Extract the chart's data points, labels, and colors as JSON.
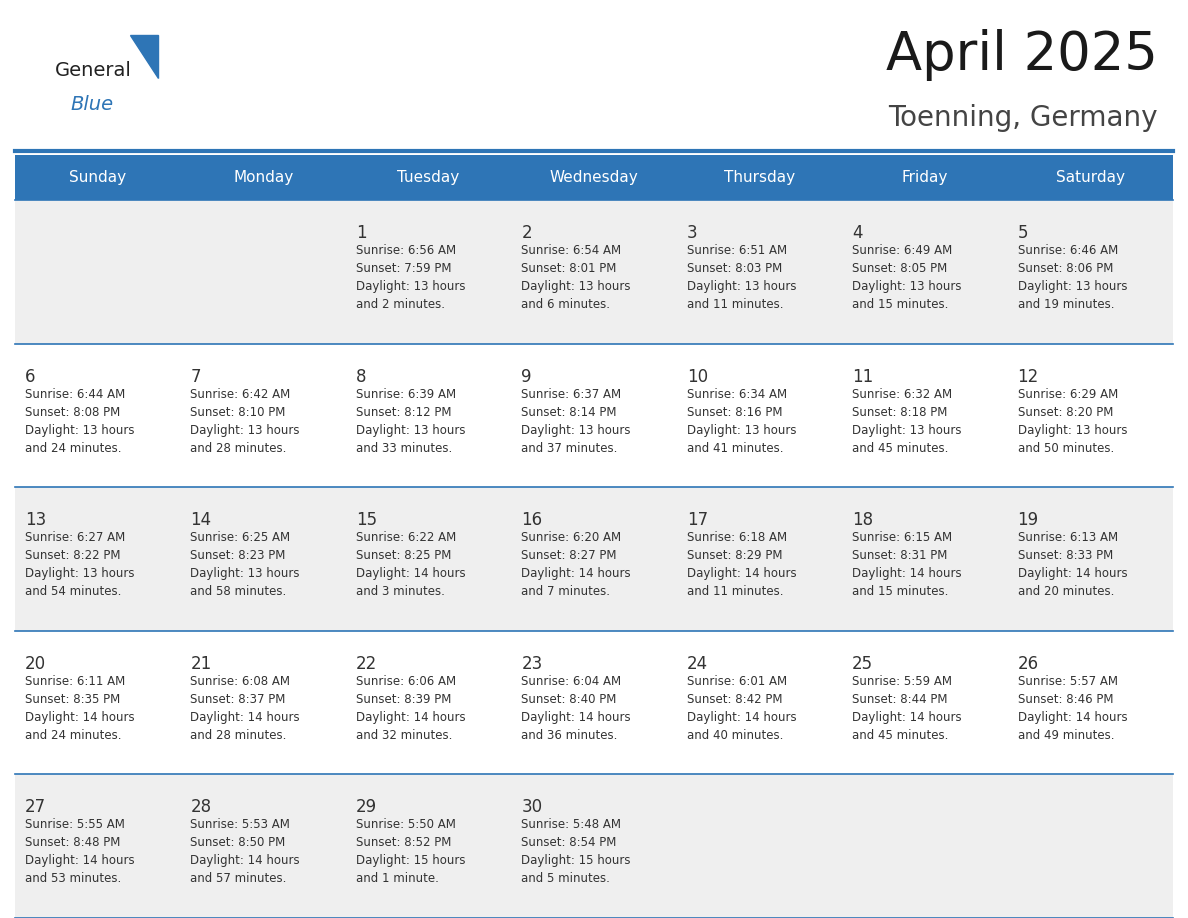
{
  "title": "April 2025",
  "subtitle": "Toenning, Germany",
  "header_bg_color": "#2E75B6",
  "header_text_color": "#FFFFFF",
  "cell_bg_light": "#EFEFEF",
  "cell_bg_white": "#FFFFFF",
  "cell_text_color": "#333333",
  "day_number_color": "#333333",
  "grid_color": "#2E75B6",
  "days_of_week": [
    "Sunday",
    "Monday",
    "Tuesday",
    "Wednesday",
    "Thursday",
    "Friday",
    "Saturday"
  ],
  "title_color": "#1a1a1a",
  "subtitle_color": "#444444",
  "logo_general_color": "#222222",
  "logo_blue_color": "#2E75B6",
  "weeks": [
    [
      {
        "date": "",
        "sunrise": "",
        "sunset": "",
        "daylight": ""
      },
      {
        "date": "",
        "sunrise": "",
        "sunset": "",
        "daylight": ""
      },
      {
        "date": "1",
        "sunrise": "6:56 AM",
        "sunset": "7:59 PM",
        "daylight": "13 hours\nand 2 minutes."
      },
      {
        "date": "2",
        "sunrise": "6:54 AM",
        "sunset": "8:01 PM",
        "daylight": "13 hours\nand 6 minutes."
      },
      {
        "date": "3",
        "sunrise": "6:51 AM",
        "sunset": "8:03 PM",
        "daylight": "13 hours\nand 11 minutes."
      },
      {
        "date": "4",
        "sunrise": "6:49 AM",
        "sunset": "8:05 PM",
        "daylight": "13 hours\nand 15 minutes."
      },
      {
        "date": "5",
        "sunrise": "6:46 AM",
        "sunset": "8:06 PM",
        "daylight": "13 hours\nand 19 minutes."
      }
    ],
    [
      {
        "date": "6",
        "sunrise": "6:44 AM",
        "sunset": "8:08 PM",
        "daylight": "13 hours\nand 24 minutes."
      },
      {
        "date": "7",
        "sunrise": "6:42 AM",
        "sunset": "8:10 PM",
        "daylight": "13 hours\nand 28 minutes."
      },
      {
        "date": "8",
        "sunrise": "6:39 AM",
        "sunset": "8:12 PM",
        "daylight": "13 hours\nand 33 minutes."
      },
      {
        "date": "9",
        "sunrise": "6:37 AM",
        "sunset": "8:14 PM",
        "daylight": "13 hours\nand 37 minutes."
      },
      {
        "date": "10",
        "sunrise": "6:34 AM",
        "sunset": "8:16 PM",
        "daylight": "13 hours\nand 41 minutes."
      },
      {
        "date": "11",
        "sunrise": "6:32 AM",
        "sunset": "8:18 PM",
        "daylight": "13 hours\nand 45 minutes."
      },
      {
        "date": "12",
        "sunrise": "6:29 AM",
        "sunset": "8:20 PM",
        "daylight": "13 hours\nand 50 minutes."
      }
    ],
    [
      {
        "date": "13",
        "sunrise": "6:27 AM",
        "sunset": "8:22 PM",
        "daylight": "13 hours\nand 54 minutes."
      },
      {
        "date": "14",
        "sunrise": "6:25 AM",
        "sunset": "8:23 PM",
        "daylight": "13 hours\nand 58 minutes."
      },
      {
        "date": "15",
        "sunrise": "6:22 AM",
        "sunset": "8:25 PM",
        "daylight": "14 hours\nand 3 minutes."
      },
      {
        "date": "16",
        "sunrise": "6:20 AM",
        "sunset": "8:27 PM",
        "daylight": "14 hours\nand 7 minutes."
      },
      {
        "date": "17",
        "sunrise": "6:18 AM",
        "sunset": "8:29 PM",
        "daylight": "14 hours\nand 11 minutes."
      },
      {
        "date": "18",
        "sunrise": "6:15 AM",
        "sunset": "8:31 PM",
        "daylight": "14 hours\nand 15 minutes."
      },
      {
        "date": "19",
        "sunrise": "6:13 AM",
        "sunset": "8:33 PM",
        "daylight": "14 hours\nand 20 minutes."
      }
    ],
    [
      {
        "date": "20",
        "sunrise": "6:11 AM",
        "sunset": "8:35 PM",
        "daylight": "14 hours\nand 24 minutes."
      },
      {
        "date": "21",
        "sunrise": "6:08 AM",
        "sunset": "8:37 PM",
        "daylight": "14 hours\nand 28 minutes."
      },
      {
        "date": "22",
        "sunrise": "6:06 AM",
        "sunset": "8:39 PM",
        "daylight": "14 hours\nand 32 minutes."
      },
      {
        "date": "23",
        "sunrise": "6:04 AM",
        "sunset": "8:40 PM",
        "daylight": "14 hours\nand 36 minutes."
      },
      {
        "date": "24",
        "sunrise": "6:01 AM",
        "sunset": "8:42 PM",
        "daylight": "14 hours\nand 40 minutes."
      },
      {
        "date": "25",
        "sunrise": "5:59 AM",
        "sunset": "8:44 PM",
        "daylight": "14 hours\nand 45 minutes."
      },
      {
        "date": "26",
        "sunrise": "5:57 AM",
        "sunset": "8:46 PM",
        "daylight": "14 hours\nand 49 minutes."
      }
    ],
    [
      {
        "date": "27",
        "sunrise": "5:55 AM",
        "sunset": "8:48 PM",
        "daylight": "14 hours\nand 53 minutes."
      },
      {
        "date": "28",
        "sunrise": "5:53 AM",
        "sunset": "8:50 PM",
        "daylight": "14 hours\nand 57 minutes."
      },
      {
        "date": "29",
        "sunrise": "5:50 AM",
        "sunset": "8:52 PM",
        "daylight": "15 hours\nand 1 minute."
      },
      {
        "date": "30",
        "sunrise": "5:48 AM",
        "sunset": "8:54 PM",
        "daylight": "15 hours\nand 5 minutes."
      },
      {
        "date": "",
        "sunrise": "",
        "sunset": "",
        "daylight": ""
      },
      {
        "date": "",
        "sunrise": "",
        "sunset": "",
        "daylight": ""
      },
      {
        "date": "",
        "sunrise": "",
        "sunset": "",
        "daylight": ""
      }
    ]
  ]
}
